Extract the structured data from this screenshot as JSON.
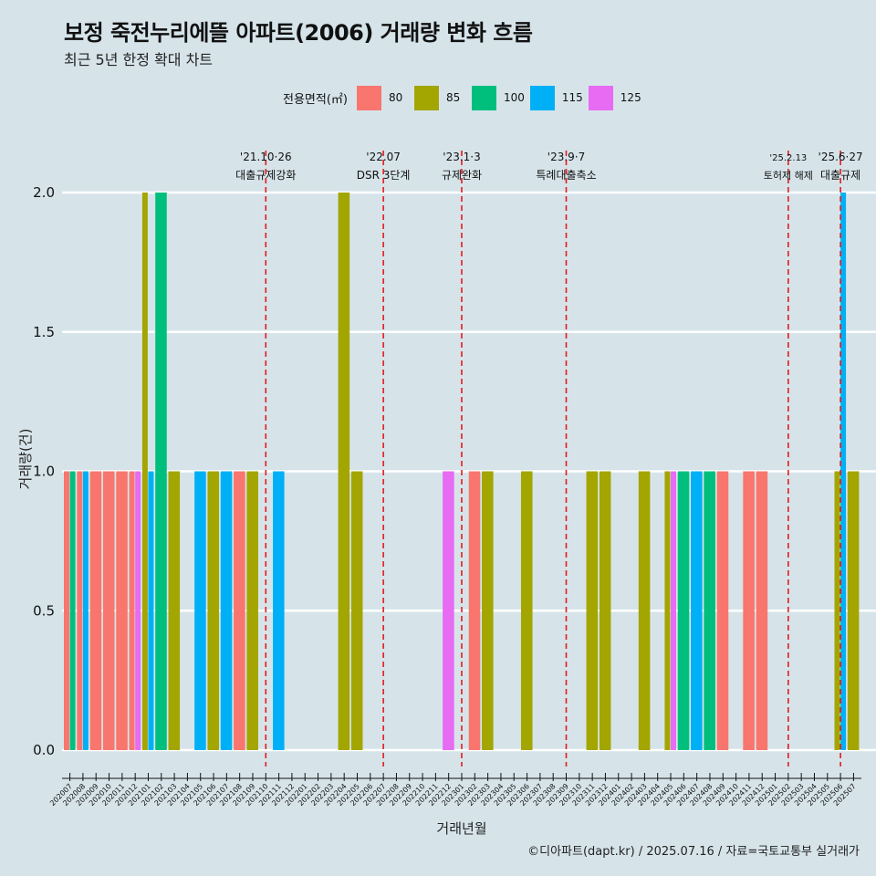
{
  "header": {
    "title": "보정 죽전누리에뜰 아파트(2006) 거래량 변화 흐름",
    "subtitle": "최근 5년 한정 확대 차트"
  },
  "legend": {
    "title": "전용면적(㎡)",
    "items": [
      {
        "label": "80",
        "color": "#f8766d"
      },
      {
        "label": "85",
        "color": "#a3a500"
      },
      {
        "label": "100",
        "color": "#00bf7d"
      },
      {
        "label": "115",
        "color": "#00b0f6"
      },
      {
        "label": "125",
        "color": "#e76bf3"
      }
    ]
  },
  "caption": "©디아파트(dapt.kr) / 2025.07.16 / 자료=국토교통부 실거래가",
  "chart_data": {
    "type": "bar",
    "xlabel": "거래년월",
    "ylabel": "거래량(건)",
    "ylim": [
      0,
      2
    ],
    "yticks": [
      "0.0",
      "0.5",
      "1.0",
      "1.5",
      "2.0"
    ],
    "grid": true,
    "legend_position": "top",
    "categories": [
      "202007",
      "202008",
      "202009",
      "202010",
      "202011",
      "202012",
      "202101",
      "202102",
      "202103",
      "202104",
      "202105",
      "202106",
      "202107",
      "202108",
      "202109",
      "202110",
      "202111",
      "202112",
      "202201",
      "202202",
      "202203",
      "202204",
      "202205",
      "202206",
      "202207",
      "202208",
      "202209",
      "202210",
      "202211",
      "202212",
      "202301",
      "202302",
      "202303",
      "202304",
      "202305",
      "202306",
      "202307",
      "202308",
      "202309",
      "202310",
      "202311",
      "202312",
      "202401",
      "202402",
      "202403",
      "202404",
      "202405",
      "202406",
      "202407",
      "202408",
      "202409",
      "202410",
      "202411",
      "202412",
      "202501",
      "202502",
      "202503",
      "202504",
      "202505",
      "202506",
      "202507"
    ],
    "series": [
      {
        "name": "80",
        "values": [
          1,
          1,
          1,
          1,
          1,
          1,
          0,
          0,
          0,
          0,
          0,
          0,
          0,
          1,
          0,
          0,
          0,
          0,
          0,
          0,
          0,
          0,
          0,
          0,
          0,
          0,
          0,
          0,
          0,
          0,
          0,
          1,
          0,
          0,
          0,
          0,
          0,
          0,
          0,
          0,
          0,
          0,
          0,
          0,
          0,
          0,
          0,
          0,
          0,
          0,
          1,
          0,
          1,
          1,
          0,
          0,
          0,
          0,
          0,
          0,
          0
        ]
      },
      {
        "name": "85",
        "values": [
          0,
          0,
          0,
          0,
          0,
          0,
          2,
          0,
          1,
          0,
          0,
          1,
          0,
          0,
          1,
          0,
          0,
          0,
          0,
          0,
          0,
          2,
          1,
          0,
          0,
          0,
          0,
          0,
          0,
          0,
          0,
          0,
          1,
          0,
          0,
          1,
          0,
          0,
          0,
          0,
          1,
          1,
          0,
          0,
          1,
          0,
          1,
          0,
          0,
          0,
          0,
          0,
          0,
          0,
          0,
          0,
          0,
          0,
          0,
          1,
          1
        ]
      },
      {
        "name": "100",
        "values": [
          1,
          0,
          0,
          0,
          0,
          0,
          0,
          2,
          0,
          0,
          0,
          0,
          0,
          0,
          0,
          0,
          0,
          0,
          0,
          0,
          0,
          0,
          0,
          0,
          0,
          0,
          0,
          0,
          0,
          0,
          0,
          0,
          0,
          0,
          0,
          0,
          0,
          0,
          0,
          0,
          0,
          0,
          0,
          0,
          0,
          0,
          0,
          1,
          0,
          1,
          0,
          0,
          0,
          0,
          0,
          0,
          0,
          0,
          0,
          0,
          0
        ]
      },
      {
        "name": "115",
        "values": [
          0,
          1,
          0,
          0,
          0,
          0,
          1,
          0,
          0,
          0,
          1,
          0,
          1,
          0,
          0,
          0,
          1,
          0,
          0,
          0,
          0,
          0,
          0,
          0,
          0,
          0,
          0,
          0,
          0,
          0,
          0,
          0,
          0,
          0,
          0,
          0,
          0,
          0,
          0,
          0,
          0,
          0,
          0,
          0,
          0,
          0,
          0,
          0,
          1,
          0,
          0,
          0,
          0,
          0,
          0,
          0,
          0,
          0,
          0,
          2,
          0
        ]
      },
      {
        "name": "125",
        "values": [
          0,
          0,
          0,
          0,
          0,
          1,
          0,
          0,
          0,
          0,
          0,
          0,
          0,
          0,
          0,
          0,
          0,
          0,
          0,
          0,
          0,
          0,
          0,
          0,
          0,
          0,
          0,
          0,
          0,
          1,
          0,
          0,
          0,
          0,
          0,
          0,
          0,
          0,
          0,
          0,
          0,
          0,
          0,
          0,
          0,
          0,
          1,
          0,
          0,
          0,
          0,
          0,
          0,
          0,
          0,
          0,
          0,
          0,
          0,
          0,
          0
        ]
      }
    ],
    "annotations": [
      {
        "x": "202110",
        "date": "'21.10·26",
        "label": "대출규제강화"
      },
      {
        "x": "202207",
        "date": "'22.07",
        "label": "DSR 3단계"
      },
      {
        "x": "202301",
        "date": "'23.1·3",
        "label": "규제완화"
      },
      {
        "x": "202309",
        "date": "'23.9·7",
        "label": "특례대출축소"
      },
      {
        "x": "202502",
        "date": "'25.2.13",
        "label": "토허제 해제"
      },
      {
        "x": "202506",
        "date": "'25.6·27",
        "label": "대출규제"
      }
    ]
  }
}
